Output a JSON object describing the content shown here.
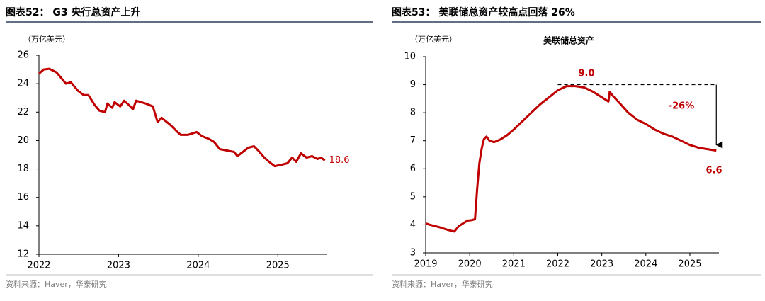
{
  "chart_data": [
    {
      "type": "line",
      "title": "图表52： G3 央行总资产上升",
      "unit_label": "（万亿美元）",
      "source": "资料来源：Haver，华泰研究",
      "color": "#c00000",
      "x": [
        2022.0,
        2022.06,
        2022.13,
        2022.22,
        2022.34,
        2022.4,
        2022.49,
        2022.56,
        2022.62,
        2022.7,
        2022.76,
        2022.83,
        2022.86,
        2022.92,
        2022.95,
        2023.02,
        2023.07,
        2023.13,
        2023.18,
        2023.22,
        2023.34,
        2023.43,
        2023.49,
        2023.54,
        2023.65,
        2023.74,
        2023.78,
        2023.87,
        2023.98,
        2024.05,
        2024.14,
        2024.2,
        2024.27,
        2024.36,
        2024.45,
        2024.49,
        2024.56,
        2024.63,
        2024.7,
        2024.77,
        2024.83,
        2024.89,
        2024.96,
        2025.05,
        2025.12,
        2025.18,
        2025.23,
        2025.29,
        2025.36,
        2025.43,
        2025.5,
        2025.54,
        2025.59
      ],
      "values": [
        24.7,
        25.0,
        25.05,
        24.8,
        24.0,
        24.1,
        23.5,
        23.2,
        23.2,
        22.5,
        22.1,
        22.0,
        22.6,
        22.3,
        22.7,
        22.4,
        22.8,
        22.5,
        22.2,
        22.8,
        22.6,
        22.4,
        21.3,
        21.6,
        21.1,
        20.6,
        20.4,
        20.4,
        20.6,
        20.3,
        20.1,
        19.9,
        19.4,
        19.3,
        19.2,
        18.9,
        19.2,
        19.5,
        19.6,
        19.2,
        18.8,
        18.5,
        18.2,
        18.3,
        18.4,
        18.8,
        18.5,
        19.1,
        18.8,
        18.9,
        18.7,
        18.8,
        18.6
      ],
      "xlim": [
        2022,
        2025.62
      ],
      "xticks": [
        2022,
        2023,
        2024,
        2025
      ],
      "ylim": [
        12,
        26
      ],
      "yticks": [
        12,
        14,
        16,
        18,
        20,
        22,
        24,
        26
      ],
      "annotations": [
        {
          "value": 18.6,
          "label": "18.6"
        }
      ]
    },
    {
      "type": "line",
      "title": "图表53： 美联储总资产较高点回落 26%",
      "unit_label": "（万亿美元）",
      "subtitle": "美联储总资产",
      "source": "资料来源：Haver，华泰研究",
      "color": "#c00000",
      "x": [
        2019.0,
        2019.1,
        2019.3,
        2019.5,
        2019.65,
        2019.75,
        2019.85,
        2019.95,
        2020.05,
        2020.12,
        2020.17,
        2020.22,
        2020.27,
        2020.32,
        2020.38,
        2020.45,
        2020.55,
        2020.7,
        2020.85,
        2021.0,
        2021.2,
        2021.4,
        2021.6,
        2021.8,
        2022.0,
        2022.2,
        2022.4,
        2022.6,
        2022.8,
        2023.0,
        2023.15,
        2023.18,
        2023.25,
        2023.4,
        2023.6,
        2023.8,
        2024.0,
        2024.2,
        2024.4,
        2024.6,
        2024.8,
        2025.0,
        2025.2,
        2025.4,
        2025.6
      ],
      "values": [
        4.05,
        4.0,
        3.92,
        3.82,
        3.76,
        3.95,
        4.05,
        4.15,
        4.17,
        4.2,
        5.3,
        6.2,
        6.7,
        7.05,
        7.15,
        7.0,
        6.95,
        7.05,
        7.2,
        7.4,
        7.7,
        8.0,
        8.3,
        8.55,
        8.8,
        8.95,
        8.95,
        8.9,
        8.75,
        8.55,
        8.4,
        8.75,
        8.6,
        8.35,
        8.0,
        7.75,
        7.6,
        7.4,
        7.25,
        7.15,
        7.0,
        6.85,
        6.75,
        6.7,
        6.65
      ],
      "xlim": [
        2019,
        2025.66
      ],
      "xticks": [
        2019,
        2020,
        2021,
        2022,
        2023,
        2024,
        2025
      ],
      "ylim": [
        3,
        10
      ],
      "yticks": [
        3,
        4,
        5,
        6,
        7,
        8,
        9,
        10
      ],
      "annotations": [
        {
          "value": 9.0,
          "label": "9.0"
        },
        {
          "value": -26,
          "label": "-26%"
        },
        {
          "value": 6.6,
          "label": "6.6"
        }
      ]
    }
  ]
}
